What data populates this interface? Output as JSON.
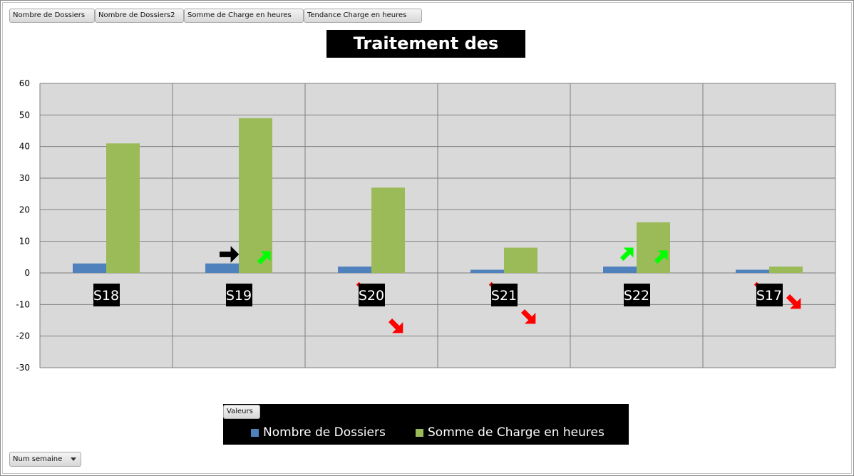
{
  "field_buttons": {
    "nb_dossiers": "Nombre de Dossiers",
    "nb_dossiers2": "Nombre de Dossiers2",
    "somme_charge": "Somme de Charge en heures",
    "tendance_charge": "Tendance Charge en heures"
  },
  "colors": {
    "plot_bg": "#d9d9d9",
    "grid": "#808080",
    "series_nb": "#4f81bd",
    "series_charge": "#9bbb59",
    "arrow_up": "#00ff00",
    "arrow_down": "#ff0000",
    "arrow_flat": "#000000"
  },
  "legend": {
    "field_label": "Valeurs",
    "items": [
      {
        "label": "Nombre de Dossiers",
        "color": "#4f81bd"
      },
      {
        "label": "Somme de Charge en heures",
        "color": "#9bbb59"
      }
    ]
  },
  "axis_field": {
    "label": "Num semaine",
    "icon": "dropdown-arrow-icon"
  },
  "chart_data": {
    "type": "bar",
    "title": "Traitement des dossiers",
    "categories": [
      "S18",
      "S19",
      "S20",
      "S21",
      "S22",
      "S17"
    ],
    "series": [
      {
        "name": "Nombre de Dossiers",
        "values": [
          3,
          3,
          2,
          1,
          2,
          1
        ]
      },
      {
        "name": "Somme de Charge en heures",
        "values": [
          41,
          49,
          27,
          8,
          16,
          2
        ]
      }
    ],
    "ylim": [
      -30,
      60
    ],
    "yticks": [
      60,
      50,
      40,
      30,
      20,
      10,
      0,
      -10,
      -20,
      -30
    ],
    "grid": true,
    "legend_position": "bottom",
    "trend_icons": [
      {
        "category": "S18",
        "nb": "",
        "charge": ""
      },
      {
        "category": "S19",
        "nb": "flat",
        "charge": "up"
      },
      {
        "category": "S20",
        "nb": "down",
        "charge": "down"
      },
      {
        "category": "S21",
        "nb": "down",
        "charge": "down"
      },
      {
        "category": "S22",
        "nb": "up",
        "charge": "up"
      },
      {
        "category": "S17",
        "nb": "down",
        "charge": "down"
      }
    ]
  }
}
